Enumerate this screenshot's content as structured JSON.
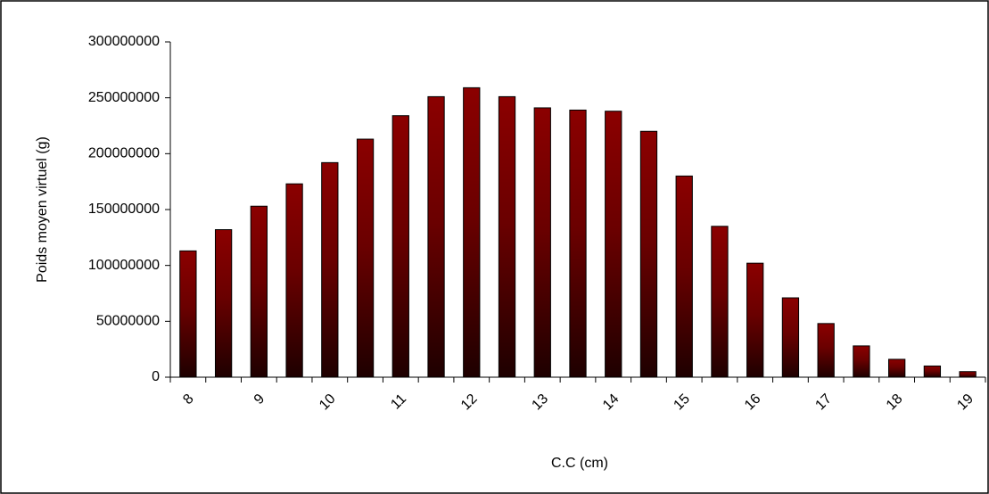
{
  "chart_data": {
    "type": "bar",
    "x_label": "C.C (cm)",
    "y_label": "Poids moyen virtuel (g)",
    "categories": [
      "8",
      null,
      "9",
      null,
      "10",
      null,
      "11",
      null,
      "12",
      null,
      "13",
      null,
      "14",
      null,
      "15",
      null,
      "16",
      null,
      "17",
      null,
      "18",
      null,
      "19"
    ],
    "values": [
      113000000,
      132000000,
      153000000,
      173000000,
      192000000,
      213000000,
      234000000,
      251000000,
      259000000,
      251000000,
      241000000,
      239000000,
      238000000,
      220000000,
      180000000,
      135000000,
      102000000,
      71000000,
      48000000,
      28000000,
      16000000,
      10000000,
      5000000
    ],
    "color": "#8b0000",
    "ylim": [
      0,
      300000000
    ],
    "yticks": [
      0,
      50000000,
      100000000,
      150000000,
      200000000,
      250000000,
      300000000
    ],
    "grid": false
  }
}
